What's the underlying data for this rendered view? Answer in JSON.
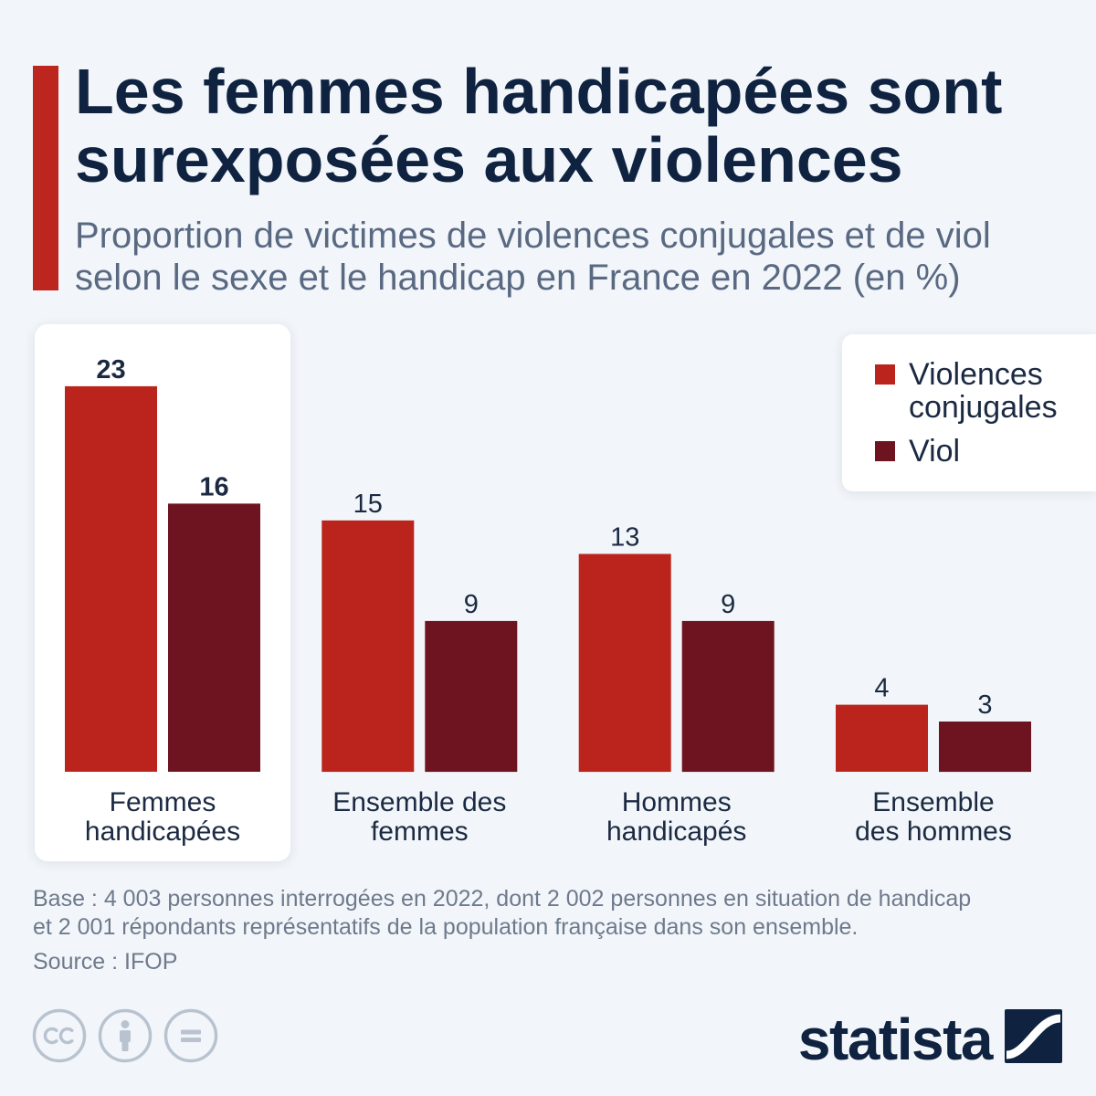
{
  "colors": {
    "background": "#f2f6fa",
    "accent_bar": "#bd261e",
    "title": "#0f2341",
    "subtitle": "#5a6982",
    "text": "#1b2a42",
    "footer": "#6e7a8c",
    "license_icons": "#b9c3d0",
    "brand": "#0f2341"
  },
  "chart_data": {
    "type": "bar",
    "title": "Les femmes handicapées sont surexposées aux violences",
    "subtitle": "Proportion de victimes de violences conjugales et de viol selon le sexe et le handicap en France en 2022 (en %)",
    "categories": [
      "Femmes handicapées",
      "Ensemble des femmes",
      "Hommes handicapés",
      "Ensemble des hommes"
    ],
    "series": [
      {
        "name": "Violences conjugales",
        "color": "#bb241d",
        "values": [
          23,
          15,
          13,
          4
        ]
      },
      {
        "name": "Viol",
        "color": "#6e1421",
        "values": [
          16,
          9,
          9,
          3
        ]
      }
    ],
    "data_labels": true,
    "highlighted_category_index": 0,
    "legend_position": "top-right",
    "grid": false
  },
  "footer": {
    "note": "Base : 4 003 personnes interrogées en 2022, dont 2 002 personnes en situation de handicap et 2 001 répondants représentatifs de la population française dans son ensemble.",
    "source": "Source : IFOP"
  },
  "license_icons": [
    "creative-commons-icon",
    "attribution-icon",
    "no-derivatives-icon"
  ],
  "brand": {
    "logo_text": "statista",
    "logo_icon": "statista-mark-icon"
  }
}
